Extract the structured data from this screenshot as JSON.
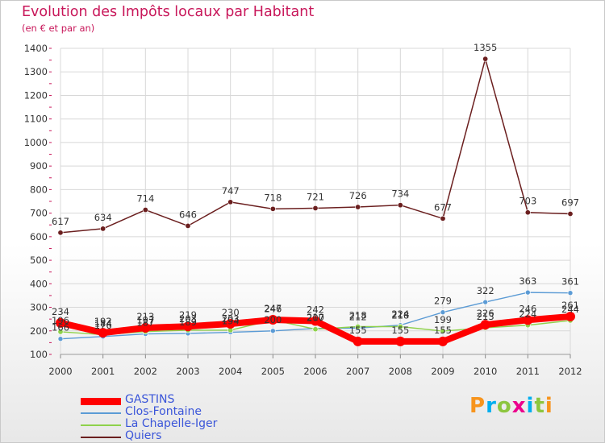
{
  "title": "Evolution des Impôts locaux par Habitant",
  "subtitle": "(en € et par an)",
  "brand": "Proxiti",
  "chart_data": {
    "type": "line",
    "title": "Evolution des Impôts locaux par Habitant",
    "subtitle": "(en € et par an)",
    "xlabel": "",
    "ylabel": "",
    "ylim": [
      100,
      1400
    ],
    "yticks": [
      100,
      200,
      300,
      400,
      500,
      600,
      700,
      800,
      900,
      1000,
      1100,
      1200,
      1300,
      1400
    ],
    "grid": true,
    "legend_position": "bottom-left",
    "categories": [
      "2000",
      "2001",
      "2002",
      "2003",
      "2004",
      "2005",
      "2006",
      "2007",
      "2008",
      "2009",
      "2010",
      "2011",
      "2012"
    ],
    "series": [
      {
        "name": "GASTINS",
        "color": "#ff0000",
        "values": [
          234,
          192,
          213,
          219,
          230,
          247,
          242,
          155,
          155,
          155,
          226,
          246,
          261
        ]
      },
      {
        "name": "Clos-Fontaine",
        "color": "#5b9bd5",
        "values": [
          166,
          176,
          187,
          189,
          194,
          200,
          210,
          212,
          224,
          279,
          322,
          363,
          361
        ]
      },
      {
        "name": "La Chapelle-Iger",
        "color": "#8ed14b",
        "values": [
          196,
          184,
          197,
          203,
          203,
          246,
          207,
          218,
          218,
          199,
          213,
          224,
          244
        ]
      },
      {
        "name": "Quiers",
        "color": "#6b1f1f",
        "values": [
          617,
          634,
          714,
          646,
          747,
          718,
          721,
          726,
          734,
          677,
          1355,
          703,
          697
        ]
      }
    ]
  }
}
